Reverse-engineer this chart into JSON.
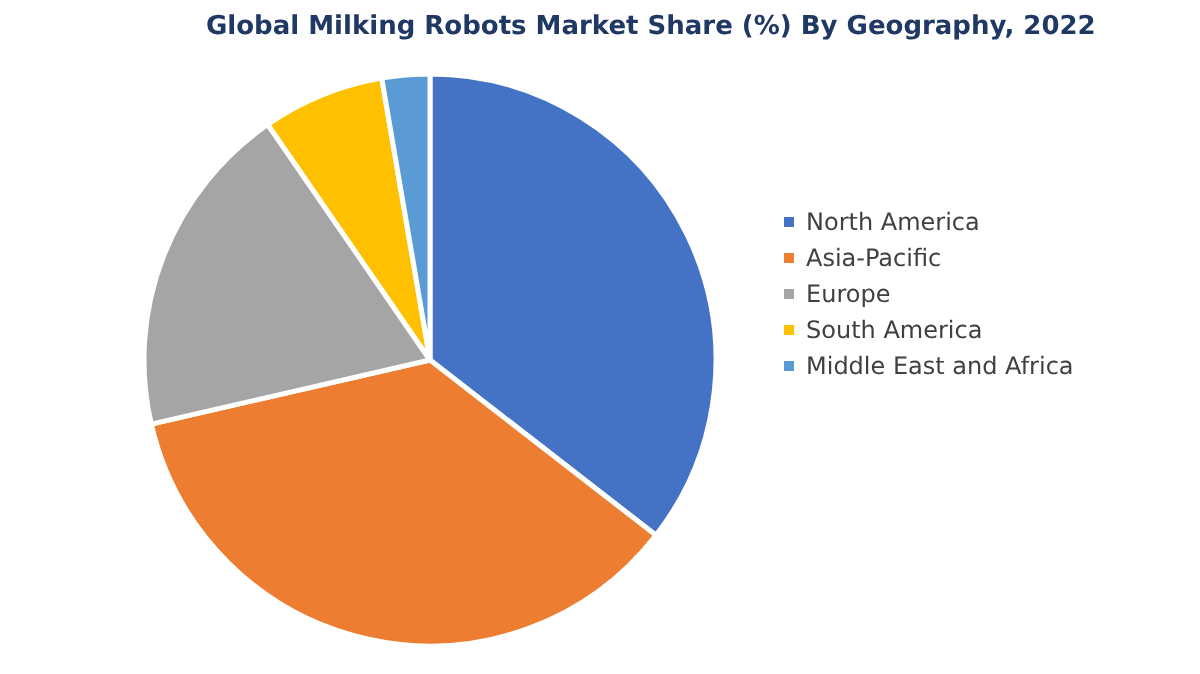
{
  "chart_data": {
    "type": "pie",
    "title": "Global Milking Robots Market Share (%) By Geography, 2022",
    "categories": [
      "North America",
      "Asia-Pacific",
      "Europe",
      "South America",
      "Middle East and Africa"
    ],
    "values": [
      35.5,
      35.9,
      19,
      6.9,
      2.7
    ],
    "colors": [
      "#4472c4",
      "#ed7d31",
      "#a5a5a5",
      "#ffc000",
      "#5b9bd5"
    ],
    "legend": "right"
  }
}
